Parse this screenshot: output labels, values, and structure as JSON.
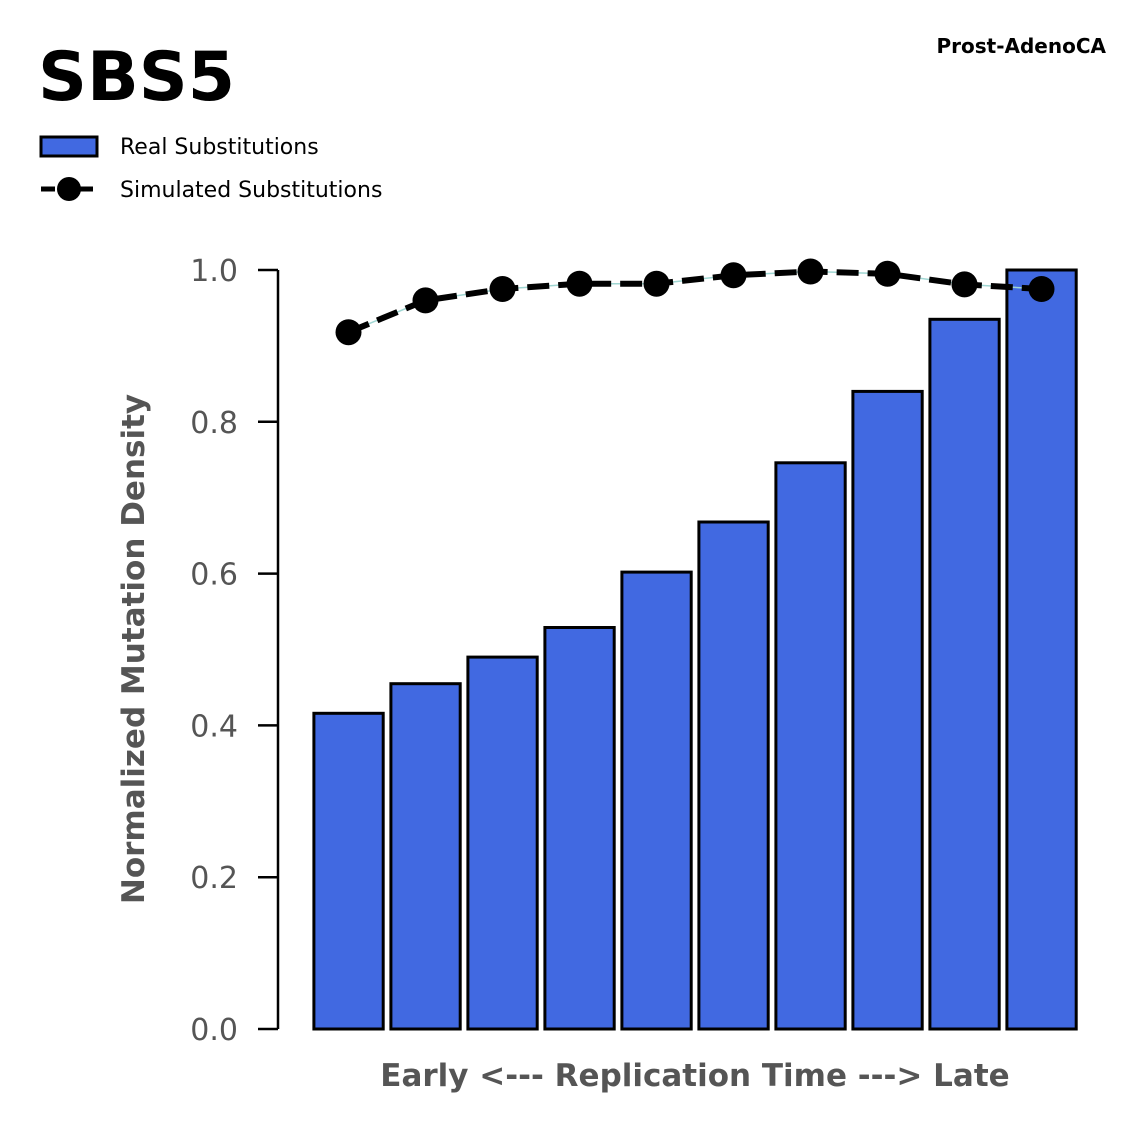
{
  "chart_data": {
    "type": "bar",
    "title": "SBS5",
    "subtitle": "Prost-AdenoCA",
    "xlabel": "Early <--- Replication Time ---> Late",
    "ylabel": "Normalized Mutation Density",
    "ylim": [
      0,
      1
    ],
    "yticks": [
      "0.0",
      "0.2",
      "0.4",
      "0.6",
      "0.8",
      "1.0"
    ],
    "grid": false,
    "legend_position": "top-left",
    "series": [
      {
        "name": "Real Substitutions",
        "kind": "bar",
        "color": "#4169e1",
        "values": [
          0.416,
          0.455,
          0.49,
          0.529,
          0.602,
          0.668,
          0.746,
          0.84,
          0.935,
          1.0
        ]
      },
      {
        "name": "Simulated Substitutions",
        "kind": "line",
        "color": "#000000",
        "values": [
          0.918,
          0.96,
          0.975,
          0.982,
          0.982,
          0.993,
          0.998,
          0.995,
          0.981,
          0.975
        ]
      }
    ]
  }
}
